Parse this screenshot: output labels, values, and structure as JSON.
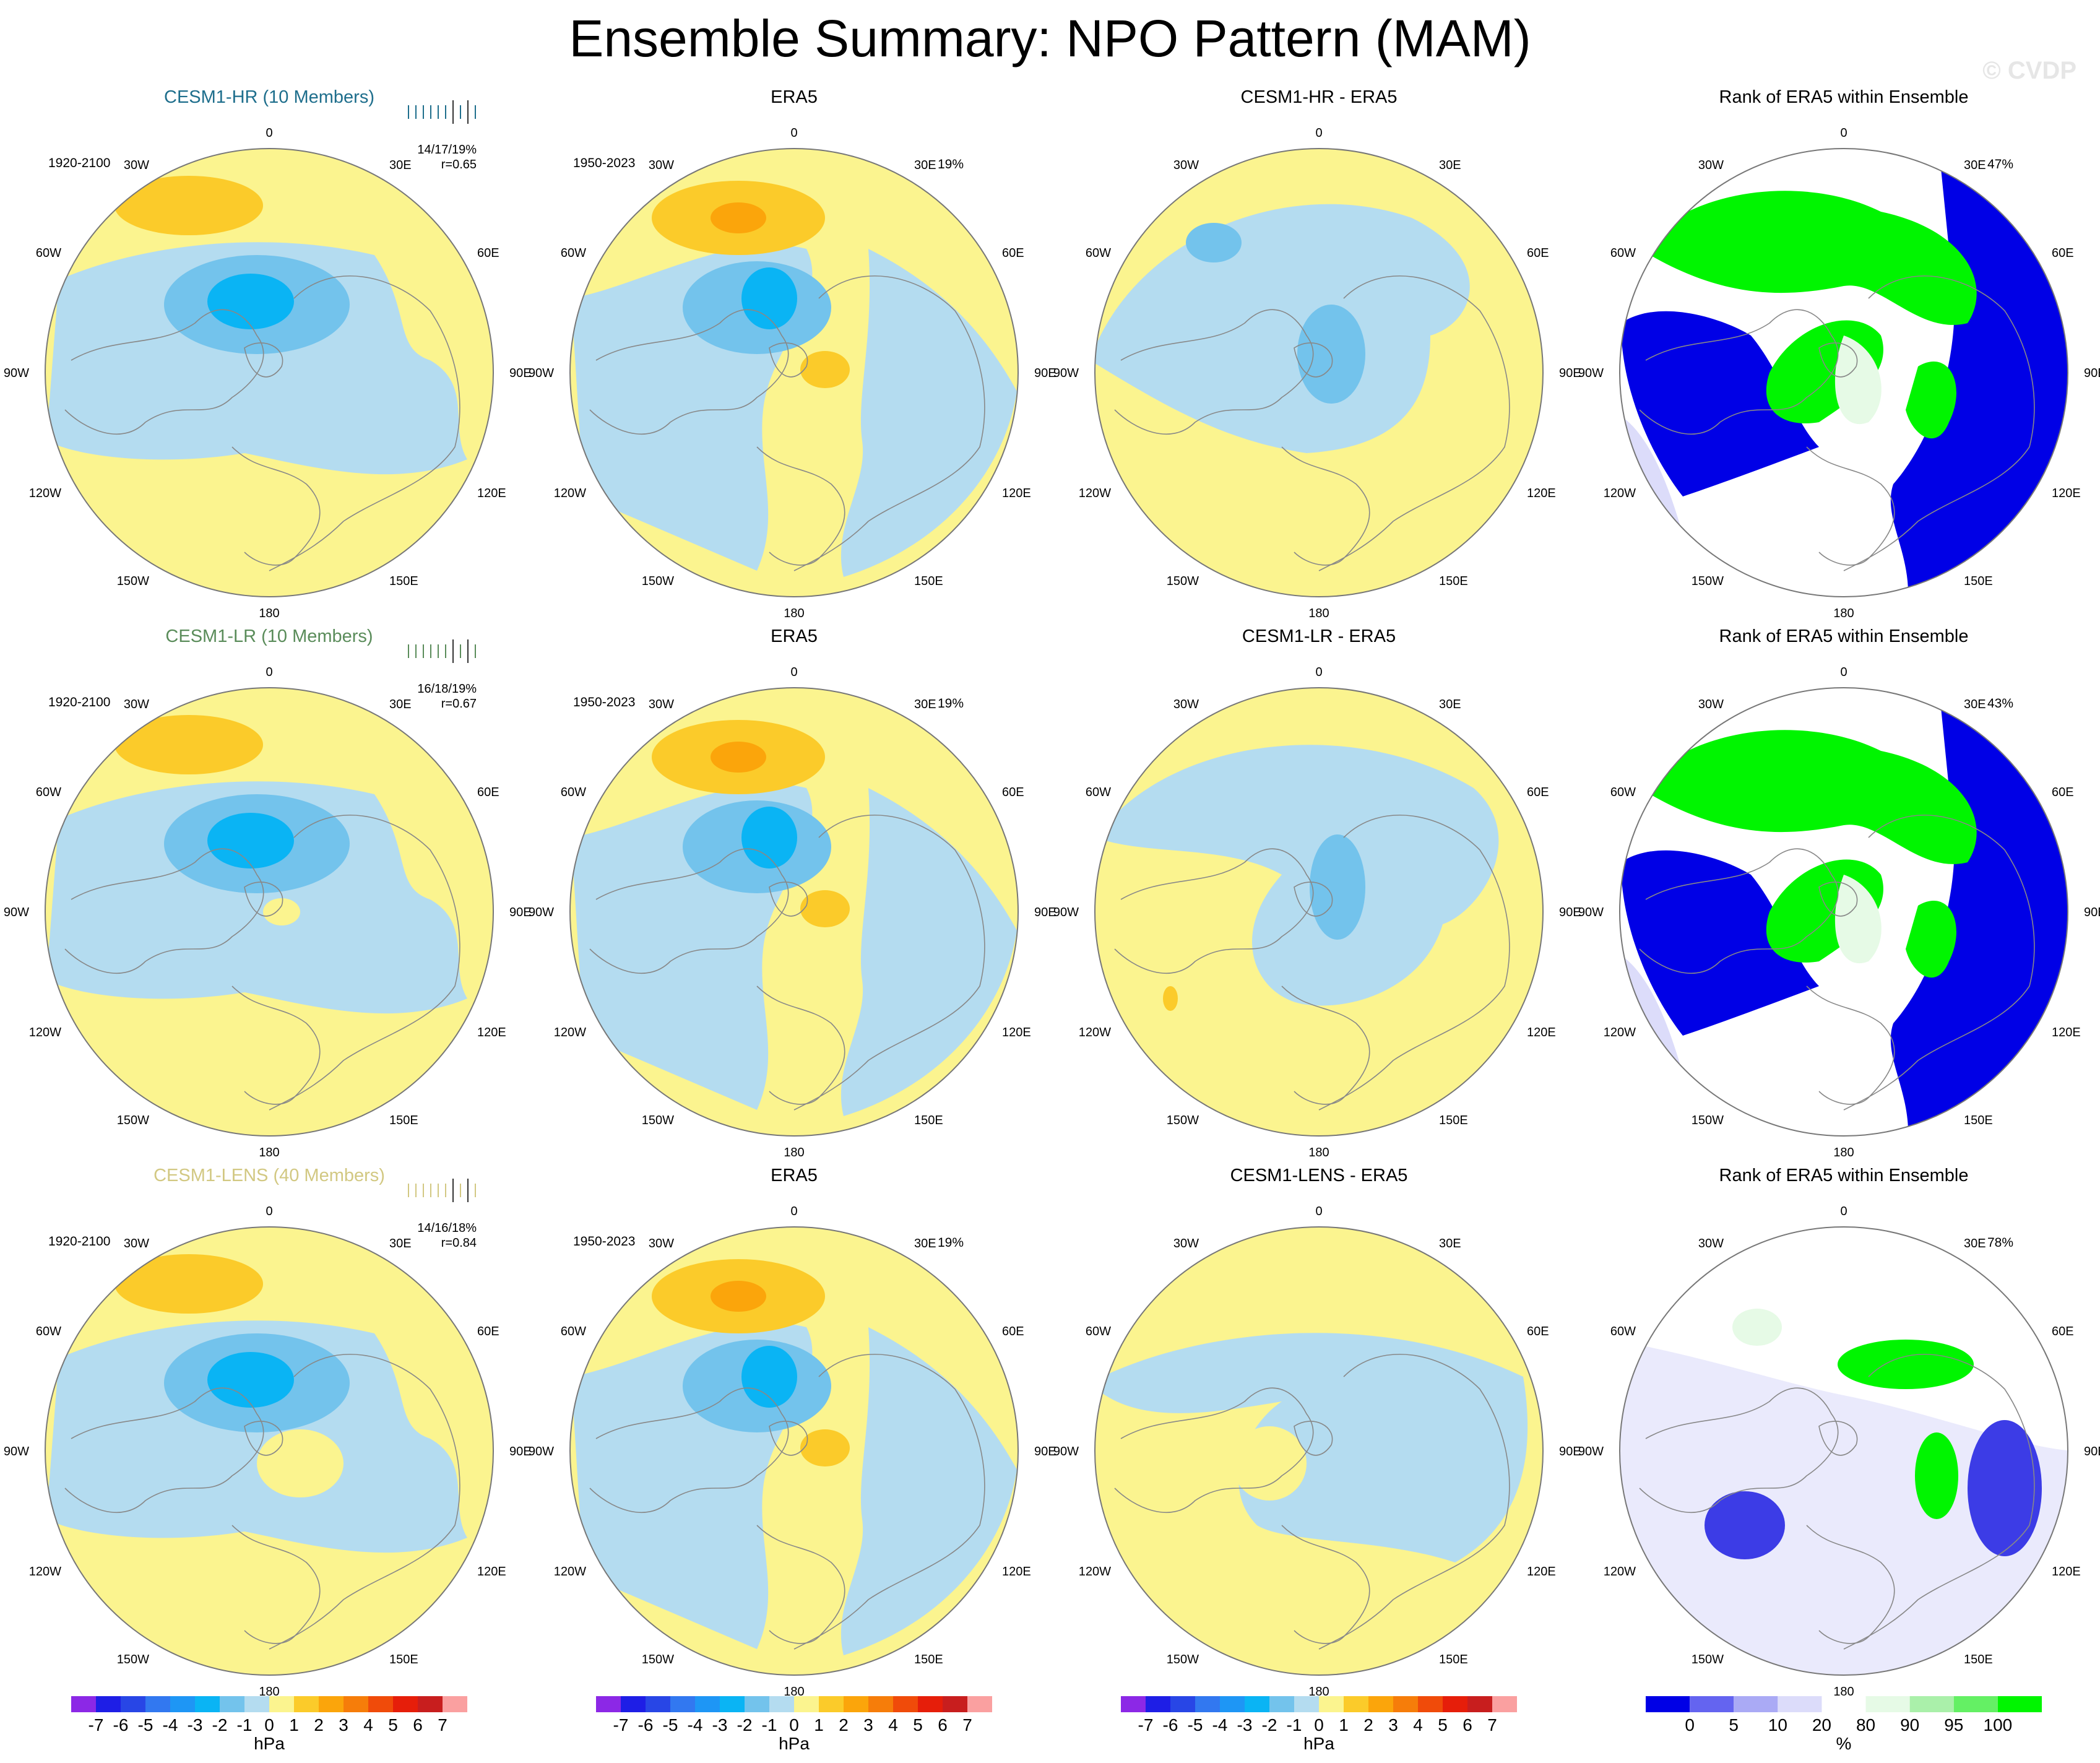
{
  "title": "Ensemble Summary: NPO Pattern (MAM)",
  "watermark": "© CVDP",
  "longitude_labels": [
    "180",
    "150E",
    "120E",
    "90E",
    "60E",
    "30E",
    "0",
    "30W",
    "60W",
    "90W",
    "120W",
    "150W"
  ],
  "colors": {
    "fill_yellow": "#fbf48f",
    "fill_lightblue": "#b4dcf0",
    "fill_blue": "#73c3ec",
    "fill_deepblue": "#0ab4f4",
    "fill_orange": "#fbcb2a",
    "fill_darkorange": "#fba50b",
    "rank_blue": "#0000e6",
    "rank_green": "#00f500",
    "rank_lavender": "#dcdcfa",
    "rank_palegreen": "#e6fae6",
    "member_hr": "#1e6e8c",
    "member_lr": "#5a8c5a",
    "member_lens": "#d2c882"
  },
  "chart_data": [
    {
      "type": "heatmap",
      "row_label": "CESM1-HR (10 Members)",
      "panels": [
        {
          "kind": "model",
          "title": "CESM1-HR (10 Members)",
          "period": "1920-2100",
          "stats": "14/17/19%",
          "corr": "r=0.65"
        },
        {
          "kind": "obs",
          "title": "ERA5",
          "period": "1950-2023",
          "pct": "19%"
        },
        {
          "kind": "diff",
          "title": "CESM1-HR - ERA5"
        },
        {
          "kind": "rank",
          "title": "Rank of ERA5 within Ensemble",
          "pct": "47%"
        }
      ]
    },
    {
      "type": "heatmap",
      "row_label": "CESM1-LR (10 Members)",
      "panels": [
        {
          "kind": "model",
          "title": "CESM1-LR (10 Members)",
          "period": "1920-2100",
          "stats": "16/18/19%",
          "corr": "r=0.67"
        },
        {
          "kind": "obs",
          "title": "ERA5",
          "period": "1950-2023",
          "pct": "19%"
        },
        {
          "kind": "diff",
          "title": "CESM1-LR - ERA5"
        },
        {
          "kind": "rank",
          "title": "Rank of ERA5 within Ensemble",
          "pct": "43%"
        }
      ]
    },
    {
      "type": "heatmap",
      "row_label": "CESM1-LENS (40 Members)",
      "panels": [
        {
          "kind": "model",
          "title": "CESM1-LENS (40 Members)",
          "period": "1920-2100",
          "stats": "14/16/18%",
          "corr": "r=0.84"
        },
        {
          "kind": "obs",
          "title": "ERA5",
          "period": "1950-2023",
          "pct": "19%"
        },
        {
          "kind": "diff",
          "title": "CESM1-LENS - ERA5"
        },
        {
          "kind": "rank",
          "title": "Rank of ERA5 within Ensemble",
          "pct": "78%"
        }
      ]
    }
  ],
  "colorbar_hpa": {
    "unit": "hPa",
    "ticks": [
      "-7",
      "-6",
      "-5",
      "-4",
      "-3",
      "-2",
      "-1",
      "0",
      "1",
      "2",
      "3",
      "4",
      "5",
      "6",
      "7"
    ],
    "colors": [
      "#8c28e6",
      "#1e1ee6",
      "#2846e6",
      "#3278f0",
      "#1e96f5",
      "#0ab4f4",
      "#73c3ec",
      "#b4dcf0",
      "#fbf48f",
      "#fbcb2a",
      "#fba50b",
      "#f67d0a",
      "#f04b0a",
      "#e61e0a",
      "#c81e1e",
      "#faa0a0"
    ]
  },
  "colorbar_rank": {
    "unit": "%",
    "ticks": [
      "0",
      "5",
      "10",
      "20",
      "80",
      "90",
      "95",
      "100"
    ],
    "colors": [
      "#0000e6",
      "#6464f0",
      "#aaaaf5",
      "#dcdcfa",
      "#ffffff",
      "#e6fae6",
      "#aaf0aa",
      "#64f064",
      "#00f500"
    ]
  }
}
